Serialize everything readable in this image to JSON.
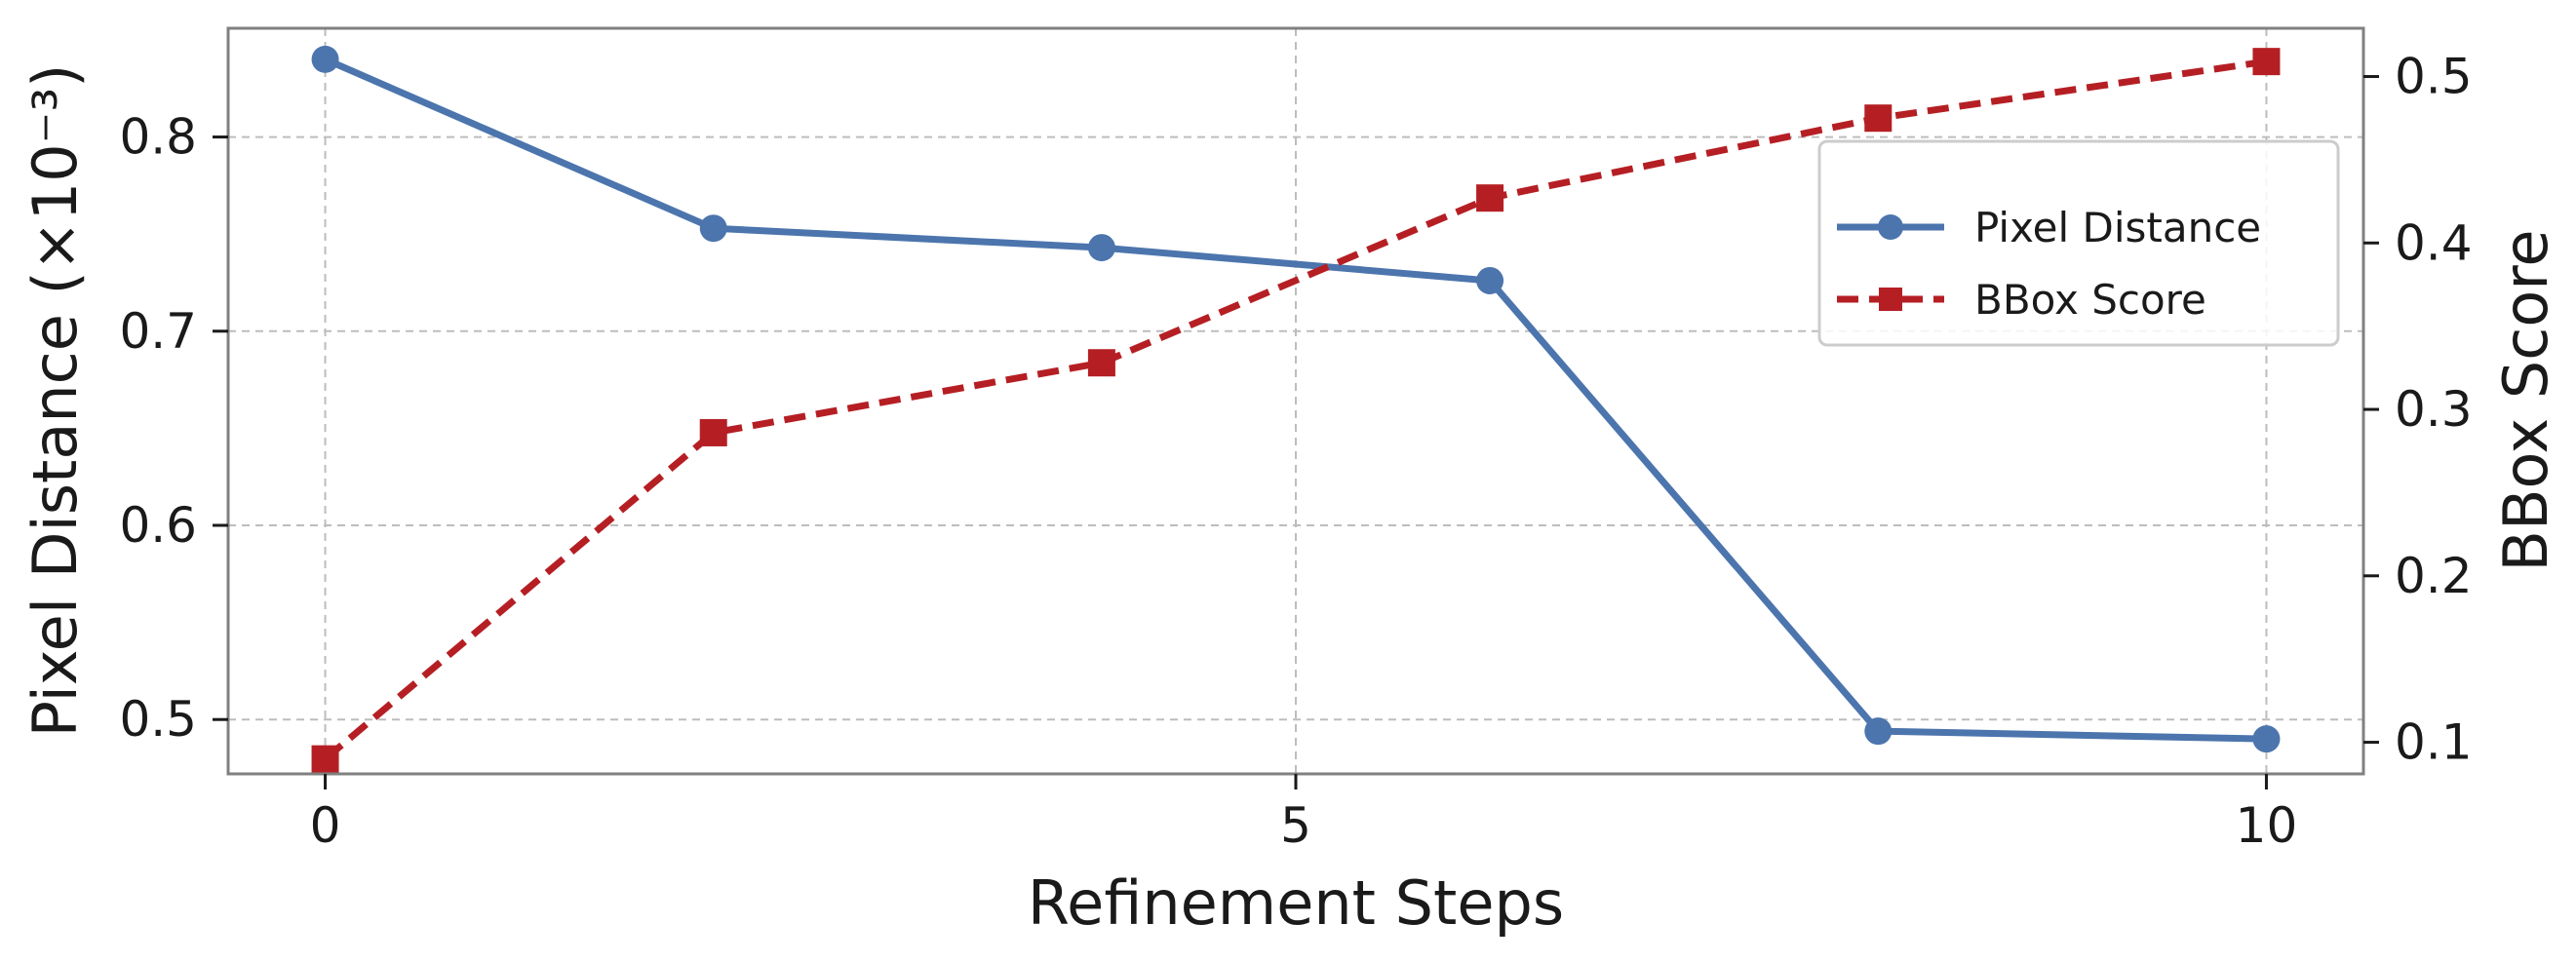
{
  "chart_data": {
    "type": "line",
    "xlabel": "Refinement Steps",
    "ylabel_left": "Pixel Distance (×10⁻³)",
    "ylabel_right": "BBox Score",
    "xlim": [
      -0.5,
      10.5
    ],
    "ylim_left": [
      0.472,
      0.856
    ],
    "ylim_right": [
      0.081,
      0.529
    ],
    "xticks": [
      0,
      5,
      10
    ],
    "yticks_left": [
      0.5,
      0.6,
      0.7,
      0.8
    ],
    "yticks_right": [
      0.1,
      0.2,
      0.3,
      0.4,
      0.5
    ],
    "grid": true,
    "legend_position": "upper right",
    "series": [
      {
        "name": "Pixel Distance",
        "axis": "left",
        "color": "#4c75ad",
        "marker": "circle",
        "linestyle": "solid",
        "x": [
          0,
          2,
          4,
          6,
          8,
          10
        ],
        "y": [
          0.84,
          0.753,
          0.743,
          0.726,
          0.494,
          0.49
        ]
      },
      {
        "name": "BBox Score",
        "axis": "right",
        "color": "#b51f24",
        "marker": "square",
        "linestyle": "dashed",
        "x": [
          0,
          2,
          4,
          6,
          8,
          10
        ],
        "y": [
          0.09,
          0.286,
          0.328,
          0.427,
          0.475,
          0.509
        ]
      }
    ]
  }
}
